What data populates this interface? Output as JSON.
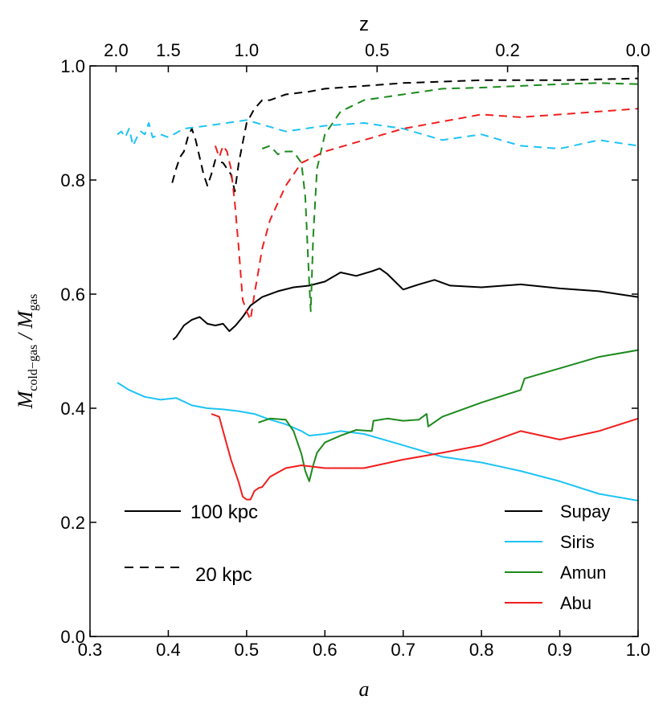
{
  "chart_data": {
    "type": "line",
    "xlabel": "a",
    "ylabel_main": "M",
    "ylabel_sub1": "cold−gas",
    "ylabel_sep": " / M",
    "ylabel_sub2": "gas",
    "top_axis_label": "z",
    "xlim": [
      0.3,
      1.0
    ],
    "ylim": [
      0.0,
      1.0
    ],
    "x_ticks": [
      "0.3",
      "0.4",
      "0.5",
      "0.6",
      "0.7",
      "0.8",
      "0.9",
      "1.0"
    ],
    "y_ticks": [
      "0.0",
      "0.2",
      "0.4",
      "0.6",
      "0.8",
      "1.0"
    ],
    "top_ticks": [
      {
        "label": "2.0",
        "z": 2.0
      },
      {
        "label": "1.5",
        "z": 1.5
      },
      {
        "label": "1.0",
        "z": 1.0
      },
      {
        "label": "0.5",
        "z": 0.5
      },
      {
        "label": "0.2",
        "z": 0.2
      },
      {
        "label": "0.0",
        "z": 0.0
      }
    ],
    "colors": {
      "Supay": "#000000",
      "Siris": "#1ec3f5",
      "Amun": "#1c8a1c",
      "Abu": "#f01e1e"
    },
    "legend": [
      {
        "name": "Supay",
        "color": "#000000"
      },
      {
        "name": "Siris",
        "color": "#1ec3f5"
      },
      {
        "name": "Amun",
        "color": "#1c8a1c"
      },
      {
        "name": "Abu",
        "color": "#f01e1e"
      }
    ],
    "style_legend": [
      {
        "label": "100 kpc",
        "style": "solid"
      },
      {
        "label": "20 kpc",
        "style": "dashed"
      }
    ],
    "series": [
      {
        "name": "Supay",
        "radius": "100 kpc",
        "style": "solid",
        "x": [
          0.406,
          0.41,
          0.42,
          0.43,
          0.44,
          0.45,
          0.46,
          0.47,
          0.478,
          0.486,
          0.495,
          0.505,
          0.52,
          0.54,
          0.56,
          0.58,
          0.6,
          0.62,
          0.64,
          0.66,
          0.67,
          0.68,
          0.7,
          0.72,
          0.74,
          0.76,
          0.8,
          0.85,
          0.9,
          0.95,
          1.0
        ],
        "y": [
          0.52,
          0.525,
          0.545,
          0.555,
          0.56,
          0.548,
          0.545,
          0.548,
          0.535,
          0.545,
          0.56,
          0.58,
          0.595,
          0.605,
          0.612,
          0.615,
          0.622,
          0.638,
          0.632,
          0.64,
          0.645,
          0.635,
          0.608,
          0.617,
          0.625,
          0.615,
          0.612,
          0.617,
          0.61,
          0.605,
          0.595
        ]
      },
      {
        "name": "Siris",
        "radius": "100 kpc",
        "style": "solid",
        "x": [
          0.335,
          0.35,
          0.37,
          0.39,
          0.41,
          0.43,
          0.45,
          0.47,
          0.49,
          0.51,
          0.53,
          0.55,
          0.57,
          0.58,
          0.6,
          0.62,
          0.65,
          0.7,
          0.75,
          0.8,
          0.85,
          0.9,
          0.95,
          1.0
        ],
        "y": [
          0.445,
          0.432,
          0.42,
          0.415,
          0.418,
          0.405,
          0.4,
          0.398,
          0.395,
          0.39,
          0.38,
          0.372,
          0.36,
          0.352,
          0.355,
          0.36,
          0.355,
          0.335,
          0.315,
          0.305,
          0.29,
          0.272,
          0.25,
          0.238
        ]
      },
      {
        "name": "Amun",
        "radius": "100 kpc",
        "style": "solid",
        "x": [
          0.515,
          0.53,
          0.55,
          0.56,
          0.57,
          0.575,
          0.58,
          0.585,
          0.59,
          0.6,
          0.62,
          0.64,
          0.66,
          0.662,
          0.68,
          0.7,
          0.72,
          0.73,
          0.732,
          0.75,
          0.8,
          0.85,
          0.855,
          0.9,
          0.95,
          1.0
        ],
        "y": [
          0.375,
          0.382,
          0.38,
          0.36,
          0.32,
          0.29,
          0.272,
          0.3,
          0.322,
          0.34,
          0.352,
          0.362,
          0.36,
          0.378,
          0.382,
          0.378,
          0.38,
          0.39,
          0.368,
          0.385,
          0.41,
          0.432,
          0.452,
          0.47,
          0.49,
          0.502
        ]
      },
      {
        "name": "Abu",
        "radius": "100 kpc",
        "style": "solid",
        "x": [
          0.455,
          0.465,
          0.47,
          0.48,
          0.49,
          0.495,
          0.5,
          0.505,
          0.51,
          0.515,
          0.52,
          0.53,
          0.55,
          0.57,
          0.6,
          0.65,
          0.7,
          0.75,
          0.8,
          0.85,
          0.9,
          0.95,
          1.0
        ],
        "y": [
          0.39,
          0.385,
          0.36,
          0.31,
          0.27,
          0.245,
          0.24,
          0.24,
          0.255,
          0.26,
          0.262,
          0.28,
          0.295,
          0.3,
          0.295,
          0.295,
          0.31,
          0.322,
          0.335,
          0.36,
          0.345,
          0.36,
          0.382
        ]
      },
      {
        "name": "Supay",
        "radius": "20 kpc",
        "style": "dashed",
        "x": [
          0.405,
          0.41,
          0.415,
          0.42,
          0.425,
          0.43,
          0.435,
          0.44,
          0.445,
          0.45,
          0.455,
          0.46,
          0.47,
          0.48,
          0.485,
          0.49,
          0.5,
          0.51,
          0.52,
          0.53,
          0.55,
          0.58,
          0.6,
          0.65,
          0.7,
          0.8,
          0.9,
          1.0
        ],
        "y": [
          0.795,
          0.82,
          0.84,
          0.85,
          0.875,
          0.89,
          0.87,
          0.84,
          0.81,
          0.79,
          0.81,
          0.835,
          0.83,
          0.81,
          0.78,
          0.83,
          0.9,
          0.925,
          0.94,
          0.94,
          0.95,
          0.955,
          0.96,
          0.965,
          0.97,
          0.975,
          0.975,
          0.978
        ]
      },
      {
        "name": "Siris",
        "radius": "20 kpc",
        "style": "dashed",
        "x": [
          0.335,
          0.34,
          0.345,
          0.35,
          0.355,
          0.36,
          0.365,
          0.37,
          0.375,
          0.38,
          0.39,
          0.4,
          0.42,
          0.45,
          0.5,
          0.55,
          0.6,
          0.65,
          0.7,
          0.75,
          0.8,
          0.85,
          0.9,
          0.95,
          1.0
        ],
        "y": [
          0.88,
          0.885,
          0.875,
          0.89,
          0.86,
          0.875,
          0.885,
          0.88,
          0.9,
          0.875,
          0.88,
          0.875,
          0.89,
          0.895,
          0.905,
          0.885,
          0.895,
          0.9,
          0.89,
          0.87,
          0.88,
          0.86,
          0.855,
          0.87,
          0.86
        ]
      },
      {
        "name": "Amun",
        "radius": "20 kpc",
        "style": "dashed",
        "x": [
          0.52,
          0.53,
          0.54,
          0.55,
          0.56,
          0.57,
          0.575,
          0.58,
          0.582,
          0.585,
          0.59,
          0.6,
          0.62,
          0.65,
          0.7,
          0.75,
          0.8,
          0.85,
          0.9,
          0.95,
          1.0
        ],
        "y": [
          0.855,
          0.86,
          0.845,
          0.85,
          0.85,
          0.83,
          0.77,
          0.62,
          0.57,
          0.7,
          0.82,
          0.88,
          0.92,
          0.94,
          0.95,
          0.96,
          0.962,
          0.965,
          0.968,
          0.97,
          0.968
        ]
      },
      {
        "name": "Abu",
        "radius": "20 kpc",
        "style": "dashed",
        "x": [
          0.46,
          0.465,
          0.47,
          0.475,
          0.48,
          0.485,
          0.49,
          0.495,
          0.5,
          0.505,
          0.51,
          0.515,
          0.52,
          0.53,
          0.54,
          0.55,
          0.56,
          0.57,
          0.6,
          0.65,
          0.7,
          0.8,
          0.85,
          0.9,
          0.95,
          1.0
        ],
        "y": [
          0.86,
          0.84,
          0.86,
          0.85,
          0.82,
          0.76,
          0.68,
          0.59,
          0.57,
          0.555,
          0.6,
          0.64,
          0.68,
          0.73,
          0.76,
          0.79,
          0.81,
          0.83,
          0.85,
          0.87,
          0.89,
          0.915,
          0.91,
          0.915,
          0.92,
          0.925
        ]
      }
    ]
  }
}
